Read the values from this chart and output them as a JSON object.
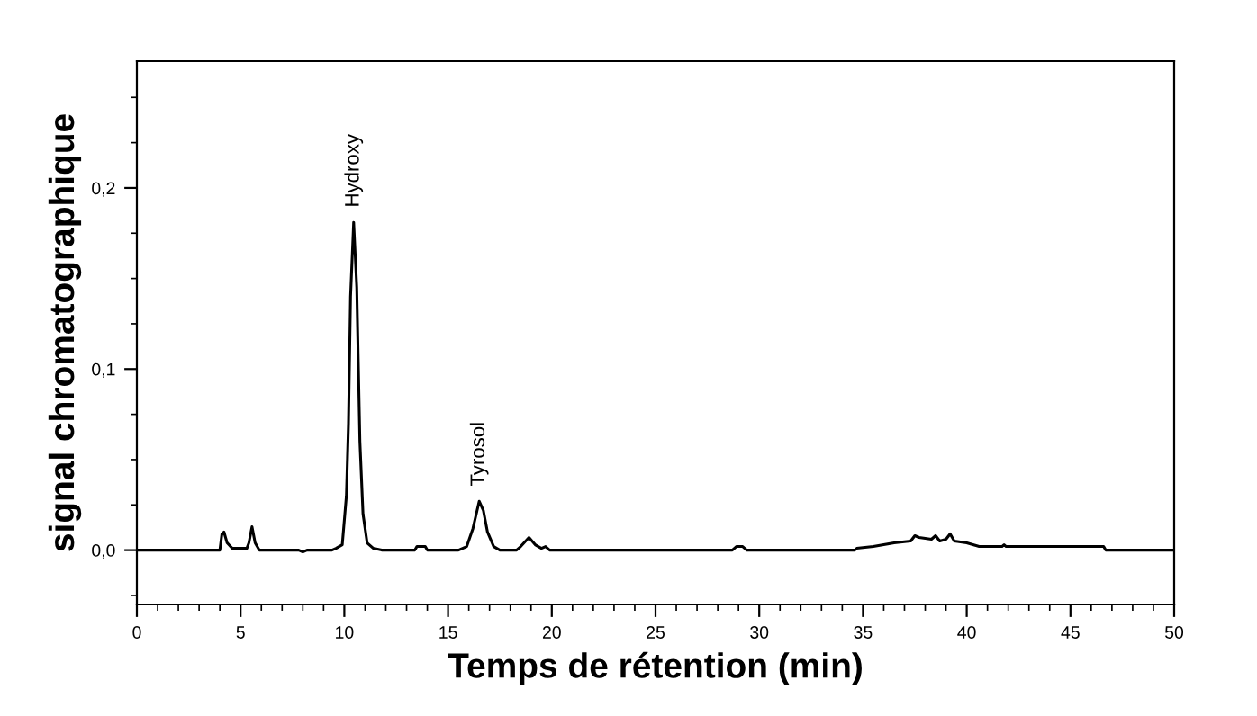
{
  "chart_data": {
    "type": "line",
    "xlabel": "Temps de rétention (min)",
    "ylabel": "signal chromatographique",
    "xlim": [
      0,
      50
    ],
    "ylim": [
      -0.03,
      0.27
    ],
    "xticks": [
      0,
      {
        "value": 1,
        "label": null
      },
      {
        "value": 2,
        "label": null
      },
      {
        "value": 3,
        "label": null
      },
      {
        "value": 4,
        "label": null
      },
      5,
      {
        "value": 6,
        "label": null
      },
      {
        "value": 7,
        "label": null
      },
      {
        "value": 8,
        "label": null
      },
      {
        "value": 9,
        "label": null
      },
      10,
      {
        "value": 11,
        "label": null
      },
      {
        "value": 12,
        "label": null
      },
      {
        "value": 13,
        "label": null
      },
      {
        "value": 14,
        "label": null
      },
      15,
      {
        "value": 16,
        "label": null
      },
      {
        "value": 17,
        "label": null
      },
      {
        "value": 18,
        "label": null
      },
      {
        "value": 19,
        "label": null
      },
      20,
      {
        "value": 21,
        "label": null
      },
      {
        "value": 22,
        "label": null
      },
      {
        "value": 23,
        "label": null
      },
      {
        "value": 24,
        "label": null
      },
      25,
      {
        "value": 26,
        "label": null
      },
      {
        "value": 27,
        "label": null
      },
      {
        "value": 28,
        "label": null
      },
      {
        "value": 29,
        "label": null
      },
      30,
      {
        "value": 31,
        "label": null
      },
      {
        "value": 32,
        "label": null
      },
      {
        "value": 33,
        "label": null
      },
      {
        "value": 34,
        "label": null
      },
      35,
      {
        "value": 36,
        "label": null
      },
      {
        "value": 37,
        "label": null
      },
      {
        "value": 38,
        "label": null
      },
      {
        "value": 39,
        "label": null
      },
      40,
      {
        "value": 41,
        "label": null
      },
      {
        "value": 42,
        "label": null
      },
      {
        "value": 43,
        "label": null
      },
      {
        "value": 44,
        "label": null
      },
      45,
      {
        "value": 46,
        "label": null
      },
      {
        "value": 47,
        "label": null
      },
      {
        "value": 48,
        "label": null
      },
      {
        "value": 49,
        "label": null
      },
      50
    ],
    "yticks": [
      {
        "value": -0.025,
        "label": null
      },
      {
        "value": 0,
        "label": "0,0"
      },
      {
        "value": 0.025,
        "label": null
      },
      {
        "value": 0.05,
        "label": null
      },
      {
        "value": 0.075,
        "label": null
      },
      {
        "value": 0.1,
        "label": "0,1"
      },
      {
        "value": 0.125,
        "label": null
      },
      {
        "value": 0.15,
        "label": null
      },
      {
        "value": 0.175,
        "label": null
      },
      {
        "value": 0.2,
        "label": "0,2"
      },
      {
        "value": 0.225,
        "label": null
      },
      {
        "value": 0.25,
        "label": null
      }
    ],
    "grid": false,
    "marker": "none",
    "line_style": "solid",
    "annotations": [
      {
        "text": "Hydroxy",
        "x": 10.45,
        "y": 0.181
      },
      {
        "text": "Tyrosol",
        "x": 16.5,
        "y": 0.027
      }
    ],
    "series": [
      {
        "color": "#000000",
        "x": [
          0,
          4.0,
          4.1,
          4.2,
          4.35,
          4.6,
          5.3,
          5.4,
          5.55,
          5.7,
          5.9,
          7.8,
          8.0,
          8.2,
          9.4,
          9.6,
          9.9,
          10.1,
          10.2,
          10.3,
          10.45,
          10.6,
          10.75,
          10.9,
          11.1,
          11.4,
          11.8,
          13.4,
          13.5,
          13.9,
          14.0,
          15.5,
          15.9,
          16.2,
          16.5,
          16.7,
          16.9,
          17.2,
          17.5,
          18.3,
          18.5,
          18.9,
          19.2,
          19.5,
          19.7,
          19.9,
          28.7,
          28.9,
          29.2,
          29.4,
          34.6,
          34.7,
          35.5,
          36.5,
          37.3,
          37.5,
          37.7,
          38.3,
          38.5,
          38.7,
          39.0,
          39.2,
          39.4,
          40.0,
          40.6,
          41.7,
          41.8,
          41.9,
          46.6,
          46.7,
          50
        ],
        "values": [
          0,
          0,
          0.009,
          0.01,
          0.004,
          0.001,
          0.001,
          0.004,
          0.013,
          0.004,
          0,
          0,
          -0.001,
          0,
          0,
          0.001,
          0.003,
          0.03,
          0.07,
          0.14,
          0.181,
          0.145,
          0.06,
          0.02,
          0.004,
          0.001,
          0,
          0,
          0.002,
          0.002,
          0,
          0,
          0.002,
          0.012,
          0.027,
          0.022,
          0.01,
          0.002,
          0,
          0,
          0.002,
          0.007,
          0.003,
          0.001,
          0.002,
          0,
          0,
          0.002,
          0.002,
          0,
          0,
          0.001,
          0.002,
          0.004,
          0.005,
          0.008,
          0.007,
          0.006,
          0.008,
          0.005,
          0.006,
          0.009,
          0.005,
          0.004,
          0.002,
          0.002,
          0.003,
          0.002,
          0.002,
          0,
          0
        ]
      }
    ]
  }
}
